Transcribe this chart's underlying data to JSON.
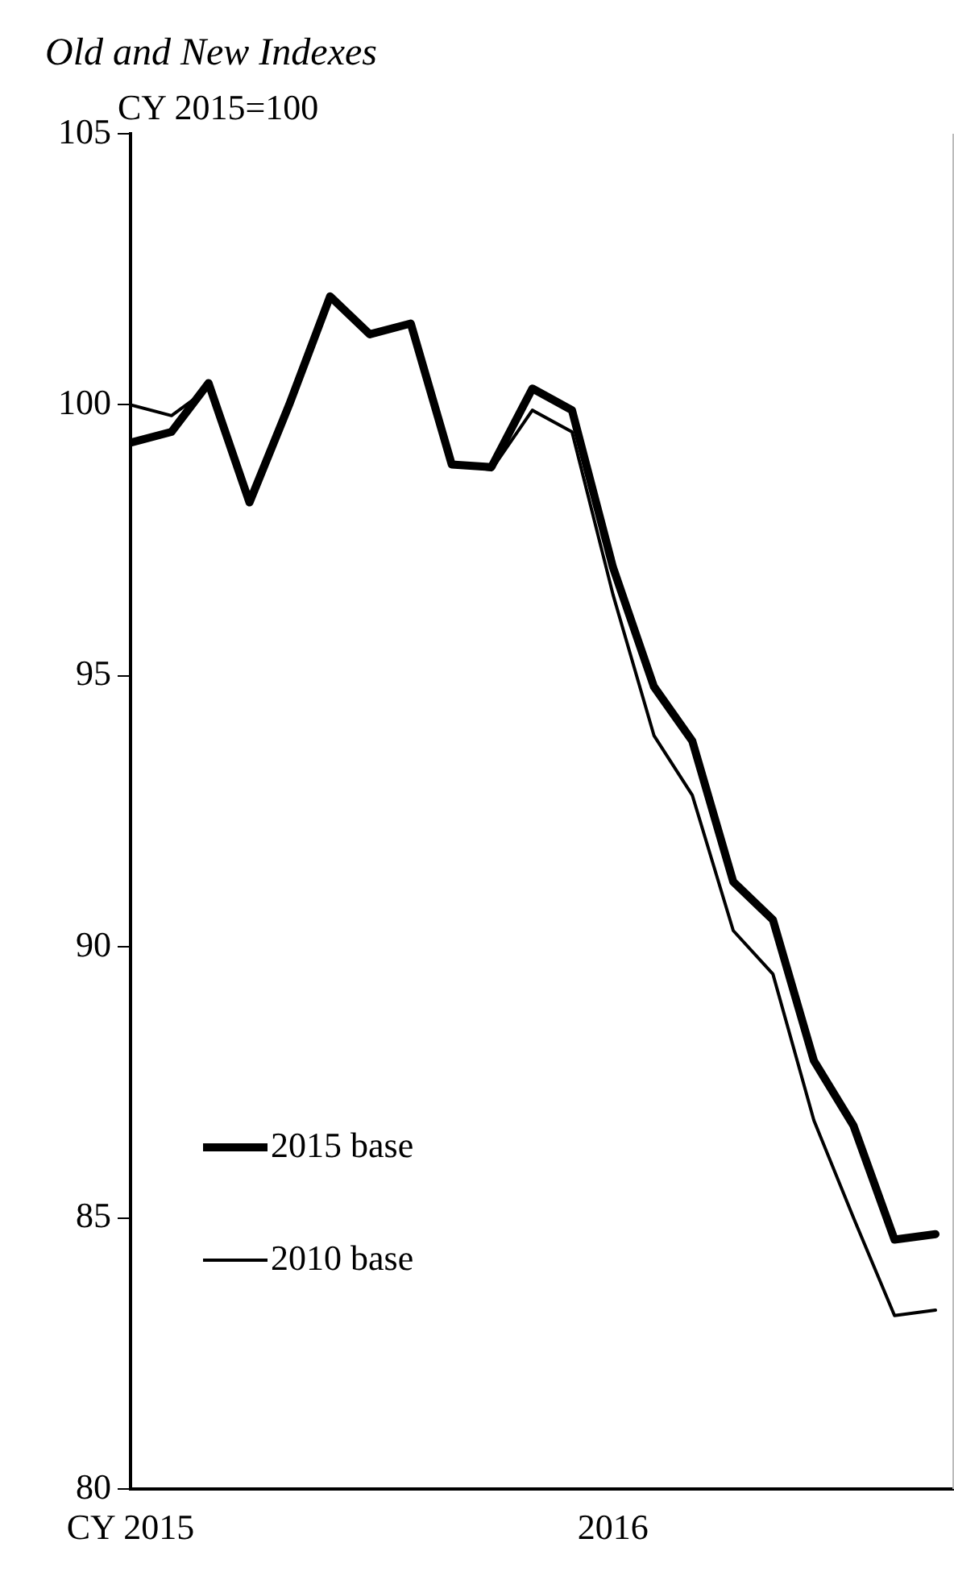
{
  "chart_data": {
    "type": "line",
    "title": "Old and New Indexes",
    "ylabel": "CY 2015=100",
    "x": [
      "2015-01",
      "2015-02",
      "2015-03",
      "2015-04",
      "2015-05",
      "2015-06",
      "2015-07",
      "2015-08",
      "2015-09",
      "2015-10",
      "2015-11",
      "2015-12",
      "2016-01",
      "2016-02",
      "2016-03",
      "2016-04",
      "2016-05",
      "2016-06",
      "2016-07",
      "2016-08",
      "2016-09"
    ],
    "series": [
      {
        "name": "2015 base",
        "color": "#000000",
        "values": [
          99.3,
          99.5,
          100.4,
          98.2,
          100.0,
          102.0,
          101.3,
          101.5,
          98.9,
          98.85,
          100.3,
          99.9,
          97.0,
          94.8,
          93.8,
          91.2,
          90.5,
          87.9,
          86.7,
          84.6,
          84.7
        ]
      },
      {
        "name": "2010 base",
        "color": "#000000",
        "values": [
          100.0,
          99.8,
          100.3,
          98.2,
          100.0,
          102.0,
          101.3,
          101.5,
          98.9,
          98.8,
          99.9,
          99.5,
          96.5,
          93.9,
          92.8,
          90.3,
          89.5,
          86.8,
          85.0,
          83.2,
          83.3
        ]
      }
    ],
    "xlim": [
      "2015-01",
      "2016-09-15"
    ],
    "xticks": [
      {
        "value": "2015-01",
        "label": "CY 2015"
      },
      {
        "value": "2016-01",
        "label": "2016"
      }
    ],
    "ylim": [
      80,
      105
    ],
    "yticks": [
      80,
      85,
      90,
      95,
      100,
      105
    ],
    "grid": false,
    "legend": "bottom left",
    "marker": "none",
    "line_style": "solid"
  }
}
